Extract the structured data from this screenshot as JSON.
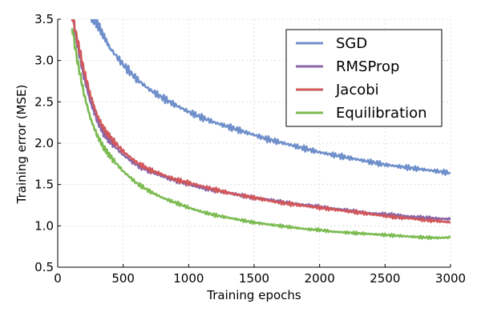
{
  "chart_data": {
    "type": "line",
    "title": "",
    "xlabel": "Training epochs",
    "ylabel": "Training error (MSE)",
    "xlim": [
      0,
      3000
    ],
    "ylim": [
      0.5,
      3.5
    ],
    "xticks": [
      0,
      500,
      1000,
      1500,
      2000,
      2500,
      3000
    ],
    "xtick_labels": [
      "0",
      "500",
      "1000",
      "1500",
      "2000",
      "2500",
      "3000"
    ],
    "yticks": [
      0.5,
      1.0,
      1.5,
      2.0,
      2.5,
      3.0,
      3.5
    ],
    "ytick_labels": [
      "0.5",
      "1.0",
      "1.5",
      "2.0",
      "2.5",
      "3.0",
      "3.5"
    ],
    "grid": true,
    "legend_position": "top-right",
    "series": [
      {
        "name": "SGD",
        "color": "#6f8fca",
        "x": [
          250,
          300,
          350,
          400,
          500,
          600,
          700,
          800,
          900,
          1000,
          1100,
          1200,
          1300,
          1400,
          1500,
          1600,
          1700,
          1800,
          1900,
          2000,
          2100,
          2200,
          2300,
          2400,
          2500,
          2600,
          2700,
          2800,
          2900,
          3000
        ],
        "y": [
          3.55,
          3.45,
          3.3,
          3.15,
          2.95,
          2.78,
          2.65,
          2.55,
          2.46,
          2.38,
          2.31,
          2.25,
          2.2,
          2.15,
          2.1,
          2.05,
          2.01,
          1.97,
          1.93,
          1.89,
          1.86,
          1.83,
          1.8,
          1.77,
          1.74,
          1.72,
          1.7,
          1.68,
          1.66,
          1.64
        ]
      },
      {
        "name": "RMSProp",
        "color": "#8a65a8",
        "x": [
          110,
          150,
          200,
          250,
          300,
          350,
          400,
          500,
          600,
          700,
          800,
          900,
          1000,
          1100,
          1200,
          1300,
          1400,
          1500,
          1600,
          1700,
          1800,
          1900,
          2000,
          2100,
          2200,
          2300,
          2400,
          2500,
          2600,
          2700,
          2800,
          2900,
          3000
        ],
        "y": [
          3.55,
          3.2,
          2.8,
          2.5,
          2.28,
          2.12,
          2.02,
          1.86,
          1.74,
          1.66,
          1.6,
          1.55,
          1.5,
          1.46,
          1.43,
          1.4,
          1.37,
          1.34,
          1.32,
          1.29,
          1.27,
          1.25,
          1.23,
          1.21,
          1.19,
          1.17,
          1.15,
          1.14,
          1.13,
          1.11,
          1.1,
          1.09,
          1.08
        ]
      },
      {
        "name": "Jacobi",
        "color": "#d1575a",
        "x": [
          110,
          150,
          200,
          250,
          300,
          350,
          400,
          500,
          600,
          700,
          800,
          900,
          1000,
          1100,
          1200,
          1300,
          1400,
          1500,
          1600,
          1700,
          1800,
          1900,
          2000,
          2100,
          2200,
          2300,
          2400,
          2500,
          2600,
          2700,
          2800,
          2900,
          3000
        ],
        "y": [
          3.55,
          3.25,
          2.88,
          2.58,
          2.34,
          2.18,
          2.07,
          1.9,
          1.77,
          1.68,
          1.62,
          1.56,
          1.52,
          1.48,
          1.44,
          1.4,
          1.37,
          1.34,
          1.31,
          1.28,
          1.26,
          1.24,
          1.22,
          1.2,
          1.18,
          1.16,
          1.14,
          1.12,
          1.1,
          1.09,
          1.07,
          1.06,
          1.04
        ]
      },
      {
        "name": "Equilibration",
        "color": "#7cbb52",
        "x": [
          110,
          150,
          200,
          250,
          300,
          350,
          400,
          500,
          600,
          700,
          800,
          900,
          1000,
          1100,
          1200,
          1300,
          1400,
          1500,
          1600,
          1700,
          1800,
          1900,
          2000,
          2100,
          2200,
          2300,
          2400,
          2500,
          2600,
          2700,
          2800,
          2900,
          3000
        ],
        "y": [
          3.4,
          3.0,
          2.6,
          2.3,
          2.1,
          1.95,
          1.84,
          1.66,
          1.52,
          1.42,
          1.34,
          1.28,
          1.22,
          1.17,
          1.13,
          1.1,
          1.07,
          1.04,
          1.02,
          1.0,
          0.98,
          0.96,
          0.95,
          0.93,
          0.92,
          0.91,
          0.9,
          0.89,
          0.88,
          0.87,
          0.86,
          0.855,
          0.86
        ]
      }
    ]
  }
}
